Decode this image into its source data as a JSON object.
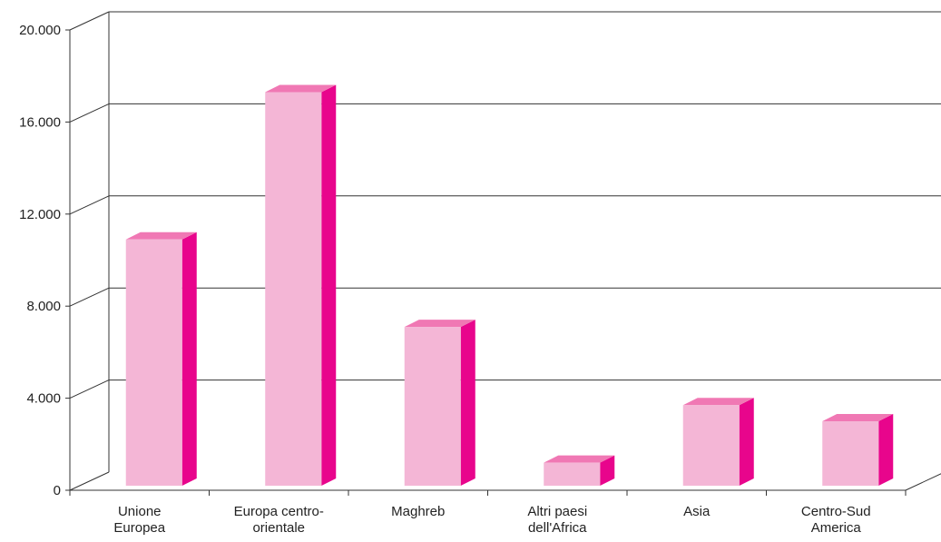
{
  "chart_data": {
    "type": "bar",
    "categories": [
      [
        "Unione",
        "Europea"
      ],
      [
        "Europa centro-",
        "orientale"
      ],
      [
        "Maghreb"
      ],
      [
        "Altri paesi",
        "dell'Africa"
      ],
      [
        "Asia"
      ],
      [
        "Centro-Sud",
        "America"
      ]
    ],
    "values": [
      10700,
      17100,
      6900,
      1000,
      3500,
      2800
    ],
    "yticks": [
      "0",
      "4.000",
      "8.000",
      "12.000",
      "16.000",
      "20.000"
    ],
    "ylim": [
      0,
      20000
    ],
    "grid": true,
    "legend": "none",
    "colors": {
      "front": "#f4b6d6",
      "side": "#e8058c",
      "top": "#f078b4",
      "axis": "#333333"
    }
  }
}
